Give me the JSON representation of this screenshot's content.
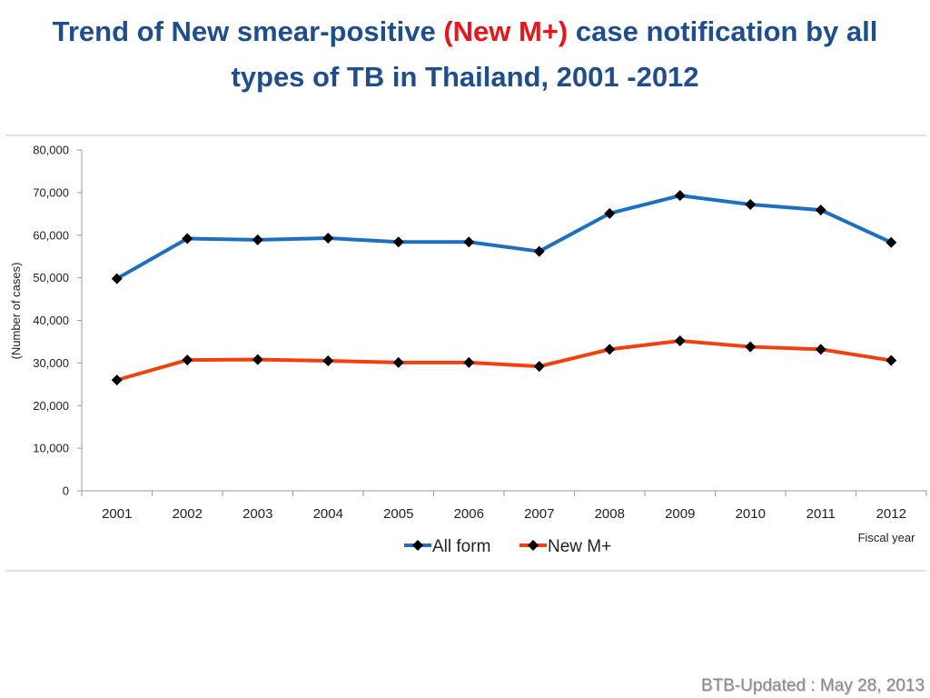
{
  "title": {
    "part1": "Trend of New smear-positive ",
    "part2": "(New M+)",
    "part3": " case notification by all",
    "line2": "types of TB in Thailand, 2001 -2012"
  },
  "footer": "BTB-Updated : May 28, 2013",
  "colors": {
    "title": "#1f4e8c",
    "highlight": "#e8151b",
    "all_form": "#1f6fbf",
    "new_m": "#f2400f",
    "marker": "#000000"
  },
  "chart_data": {
    "type": "line",
    "categories": [
      "2001",
      "2002",
      "2003",
      "2004",
      "2005",
      "2006",
      "2007",
      "2008",
      "2009",
      "2010",
      "2011",
      "2012"
    ],
    "series": [
      {
        "name": "All form",
        "values": [
          49800,
          59200,
          58900,
          59300,
          58400,
          58400,
          56200,
          65100,
          69300,
          67200,
          65900,
          58300
        ]
      },
      {
        "name": "New M+",
        "values": [
          26000,
          30700,
          30800,
          30500,
          30100,
          30100,
          29200,
          33200,
          35200,
          33800,
          33200,
          30600
        ]
      }
    ],
    "ylabel": "(Number of cases)",
    "xlabel": "Fiscal year",
    "ylim": [
      0,
      80000
    ],
    "yticks": [
      "0",
      "10,000",
      "20,000",
      "30,000",
      "40,000",
      "50,000",
      "60,000",
      "70,000",
      "80,000"
    ],
    "grid": false,
    "legend": "bottom"
  }
}
